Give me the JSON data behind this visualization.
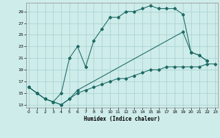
{
  "bg_color": "#ceecea",
  "grid_color": "#aad4d0",
  "line_color": "#1e6b65",
  "xlabel": "Humidex (Indice chaleur)",
  "ylabel_ticks": [
    13,
    15,
    17,
    19,
    21,
    23,
    25,
    27,
    29
  ],
  "xlabel_ticks": [
    0,
    1,
    2,
    3,
    4,
    5,
    6,
    7,
    8,
    9,
    10,
    11,
    12,
    13,
    14,
    15,
    16,
    17,
    18,
    19,
    20,
    21,
    22,
    23
  ],
  "xlim": [
    -0.3,
    23.3
  ],
  "ylim": [
    12.5,
    30.5
  ],
  "line1": {
    "x": [
      0,
      1,
      2,
      3,
      4,
      5,
      6,
      7,
      8,
      9,
      10,
      11,
      12,
      13,
      14,
      15,
      16,
      17,
      18,
      19,
      20,
      21,
      22
    ],
    "y": [
      16,
      15,
      14,
      13.5,
      15,
      21,
      23,
      19.5,
      24,
      26,
      28,
      28,
      29,
      29,
      29.5,
      30,
      29.5,
      29.5,
      29.5,
      28.5,
      22,
      21.5,
      20.5
    ]
  },
  "line2": {
    "x": [
      0,
      1,
      2,
      3,
      4,
      5,
      6,
      19,
      20,
      21,
      22
    ],
    "y": [
      16,
      15,
      14,
      13.5,
      13,
      14,
      15.5,
      25.5,
      22,
      21.5,
      20.5
    ]
  },
  "line3": {
    "x": [
      0,
      1,
      2,
      3,
      4,
      5,
      6,
      7,
      8,
      9,
      10,
      11,
      12,
      13,
      14,
      15,
      16,
      17,
      18,
      19,
      20,
      21,
      22,
      23
    ],
    "y": [
      16,
      15,
      14,
      13.5,
      13,
      14,
      15,
      15.5,
      16,
      16.5,
      17,
      17.5,
      17.5,
      18,
      18.5,
      19,
      19,
      19.5,
      19.5,
      19.5,
      19.5,
      19.5,
      20,
      20
    ]
  }
}
